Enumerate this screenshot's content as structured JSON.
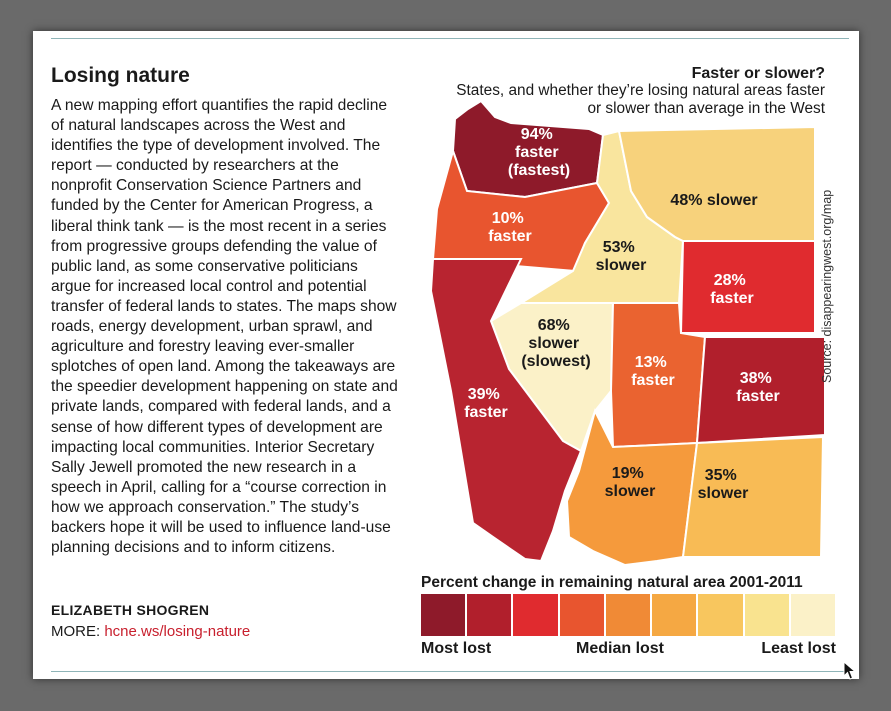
{
  "article": {
    "headline": "Losing nature",
    "body": "A new mapping effort quantifies the rapid decline of natural landscapes across the West and identifies the type of development involved. The report — conducted by researchers at the nonprofit Conservation Science Partners and funded by the Center for American Progress, a liberal think tank — is the most recent in a series from progressive groups defending the value of public land, as some conservative politicians argue for increased local control and potential transfer of federal lands to states. The maps show roads, energy development, urban sprawl, and agriculture and forestry leaving ever-smaller splotches of open land. Among the takeaways are the speedier development happening on state and private lands, compared with federal lands, and a sense of how different types of development are impacting local communities. Interior Secretary Sally Jewell promoted the new research in a speech in April, calling for a “course correction in how we approach conservation.” The study’s backers hope it will be used to influence land-use planning decisions and to inform citizens.",
    "byline": "ELIZABETH SHOGREN",
    "more_label": "MORE:",
    "more_link": "hcne.ws/losing-nature"
  },
  "map": {
    "title": "Faster or slower?",
    "subtitle": "States, and whether they’re losing natural areas faster or slower than average in the West",
    "source": "Source: disappearingwest.org/map",
    "states": [
      {
        "state": "Washington",
        "pct": "94%",
        "line2": "faster",
        "line3": "(fastest)",
        "color": "#8e1a2a",
        "text_color": "#ffffff"
      },
      {
        "state": "Oregon",
        "pct": "10%",
        "line2": "faster",
        "line3": "",
        "color": "#e8552f",
        "text_color": "#ffffff"
      },
      {
        "state": "Idaho",
        "pct": "53%",
        "line2": "slower",
        "line3": "",
        "color": "#f9e59e",
        "text_color": "#1a1a1a"
      },
      {
        "state": "Montana",
        "pct": "48% slower",
        "line2": "",
        "line3": "",
        "color": "#f7d27c",
        "text_color": "#1a1a1a"
      },
      {
        "state": "Wyoming",
        "pct": "28%",
        "line2": "faster",
        "line3": "",
        "color": "#e02b2f",
        "text_color": "#ffffff"
      },
      {
        "state": "Nevada",
        "pct": "68%",
        "line2": "slower",
        "line3": "(slowest)",
        "color": "#fbf1c8",
        "text_color": "#1a1a1a"
      },
      {
        "state": "Utah",
        "pct": "13%",
        "line2": "faster",
        "line3": "",
        "color": "#ea6330",
        "text_color": "#ffffff"
      },
      {
        "state": "Colorado",
        "pct": "38%",
        "line2": "faster",
        "line3": "",
        "color": "#b11f2c",
        "text_color": "#ffffff"
      },
      {
        "state": "California",
        "pct": "39%",
        "line2": "faster",
        "line3": "",
        "color": "#b82430",
        "text_color": "#ffffff"
      },
      {
        "state": "Arizona",
        "pct": "19%",
        "line2": "slower",
        "line3": "",
        "color": "#f59a3c",
        "text_color": "#1a1a1a"
      },
      {
        "state": "New Mexico",
        "pct": "35%",
        "line2": "slower",
        "line3": "",
        "color": "#f8bb55",
        "text_color": "#1a1a1a"
      }
    ],
    "legend": {
      "title": "Percent change in remaining natural area 2001-2011",
      "colors": [
        "#8e1a2a",
        "#b11f2c",
        "#e02b2f",
        "#e8552f",
        "#f08a36",
        "#f5a843",
        "#f8c65e",
        "#f9e38f",
        "#fbf1c8"
      ],
      "low_label": "Most lost",
      "mid_label": "Median lost",
      "high_label": "Least lost"
    }
  }
}
